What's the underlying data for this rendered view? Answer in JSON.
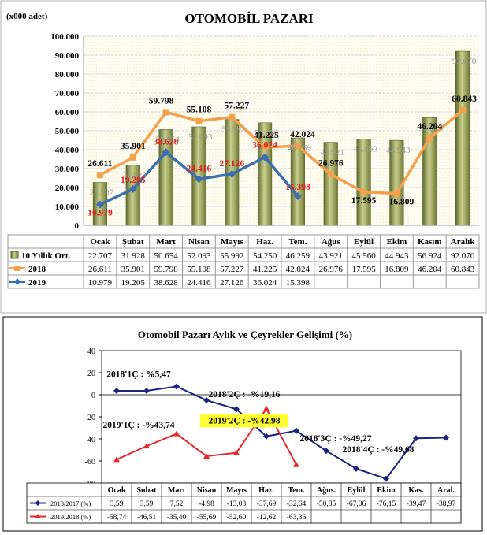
{
  "chart_data": [
    {
      "type": "bar",
      "title": "OTOMOBİL PAZARI",
      "ylabel": "(x000 adet)",
      "ylim": [
        0,
        100000
      ],
      "yticks": [
        "0",
        "10.000",
        "20.000",
        "30.000",
        "40.000",
        "50.000",
        "60.000",
        "70.000",
        "80.000",
        "90.000",
        "100.000"
      ],
      "grid": true,
      "categories": [
        "Ocak",
        "Şubat",
        "Mart",
        "Nisan",
        "Mayıs",
        "Haz.",
        "Tem.",
        "Ağus",
        "Eylül",
        "Ekim",
        "Kasım",
        "Aralık"
      ],
      "series": [
        {
          "name": "10 Yıllık Ort.",
          "kind": "bar",
          "color": "#9a9a55",
          "values": [
            22707,
            31928,
            50654,
            52093,
            55992,
            54250,
            46259,
            43921,
            45560,
            44943,
            56924,
            92070
          ],
          "labels": [
            "22.707",
            "31.928",
            "50.654",
            "52.093",
            "55.992",
            "54.250",
            "46.259",
            "43.921",
            "45.560",
            "44.943",
            "56.924",
            "92.070"
          ]
        },
        {
          "name": "2018",
          "kind": "line",
          "color": "#f5a04a",
          "values": [
            26611,
            35901,
            59798,
            55108,
            57227,
            41225,
            42024,
            26976,
            17595,
            16809,
            46204,
            60843
          ],
          "labels": [
            "26.611",
            "35.901",
            "59.798",
            "55.108",
            "57.227",
            "41.225",
            "42.024",
            "26.976",
            "17.595",
            "16.809",
            "46.204",
            "60.843"
          ]
        },
        {
          "name": "2019",
          "kind": "line",
          "color": "#3d6fb0",
          "values": [
            10979,
            19205,
            38628,
            24416,
            27126,
            36024,
            15398,
            null,
            null,
            null,
            null,
            null
          ],
          "labels": [
            "10.979",
            "19.205",
            "38.628",
            "24.416",
            "27.126",
            "36.024",
            "15.398",
            "",
            "",
            "",
            "",
            ""
          ]
        }
      ]
    },
    {
      "type": "line",
      "title": "Otomobil Pazarı Aylık ve Çeyrekler Gelişimi (%)",
      "ylim": [
        -80,
        40
      ],
      "yticks": [
        "40",
        "20",
        "0",
        "-20",
        "-40",
        "-60",
        "-80"
      ],
      "grid": false,
      "categories": [
        "Ocak",
        "Şubat",
        "Mart",
        "Nisan",
        "Mayıs",
        "Haz.",
        "Tem.",
        "Ağus.",
        "Eylül",
        "Ekim",
        "Kas.",
        "Aral."
      ],
      "series": [
        {
          "name": "2018/2017 (%)",
          "color": "#1a237e",
          "values": [
            3.59,
            3.59,
            7.52,
            -4.98,
            -13.03,
            -37.69,
            -32.64,
            -50.85,
            -67.06,
            -76.15,
            -39.47,
            -38.97
          ],
          "labels": [
            "3,59",
            "3,59",
            "7,52",
            "-4,98",
            "-13,03",
            "-37,69",
            "-32,64",
            "-50,85",
            "-67,06",
            "-76,15",
            "-39,47",
            "-38,97"
          ]
        },
        {
          "name": "2019/2018 (%)",
          "color": "#e8262b",
          "values": [
            -58.74,
            -46.51,
            -35.4,
            -55.69,
            -52.6,
            -12.62,
            -63.36,
            null,
            null,
            null,
            null,
            null
          ],
          "labels": [
            "-58,74",
            "-46,51",
            "-35,40",
            "-55,69",
            "-52,60",
            "-12,62",
            "-63,36",
            "",
            "",
            "",
            "",
            ""
          ]
        }
      ],
      "annotations": [
        {
          "text": "2018'1Ç : %5,47",
          "x": "Şubat",
          "y": 16,
          "highlight": false
        },
        {
          "text": "2018'2Ç : -%19,16",
          "x": "Mayıs",
          "y": -2,
          "highlight": false
        },
        {
          "text": "2019'1Ç : -%43,74",
          "x": "Şubat",
          "y": -30,
          "highlight": false
        },
        {
          "text": "2019'2Ç : -%42,98",
          "x": "Mayıs",
          "y": -26,
          "highlight": true
        },
        {
          "text": "2018'3Ç : -%49,27",
          "x": "Ağus.",
          "y": -42,
          "highlight": false
        },
        {
          "text": "2018'4Ç : -%49,68",
          "x": "Ekim",
          "y": -52,
          "highlight": false
        }
      ]
    }
  ]
}
